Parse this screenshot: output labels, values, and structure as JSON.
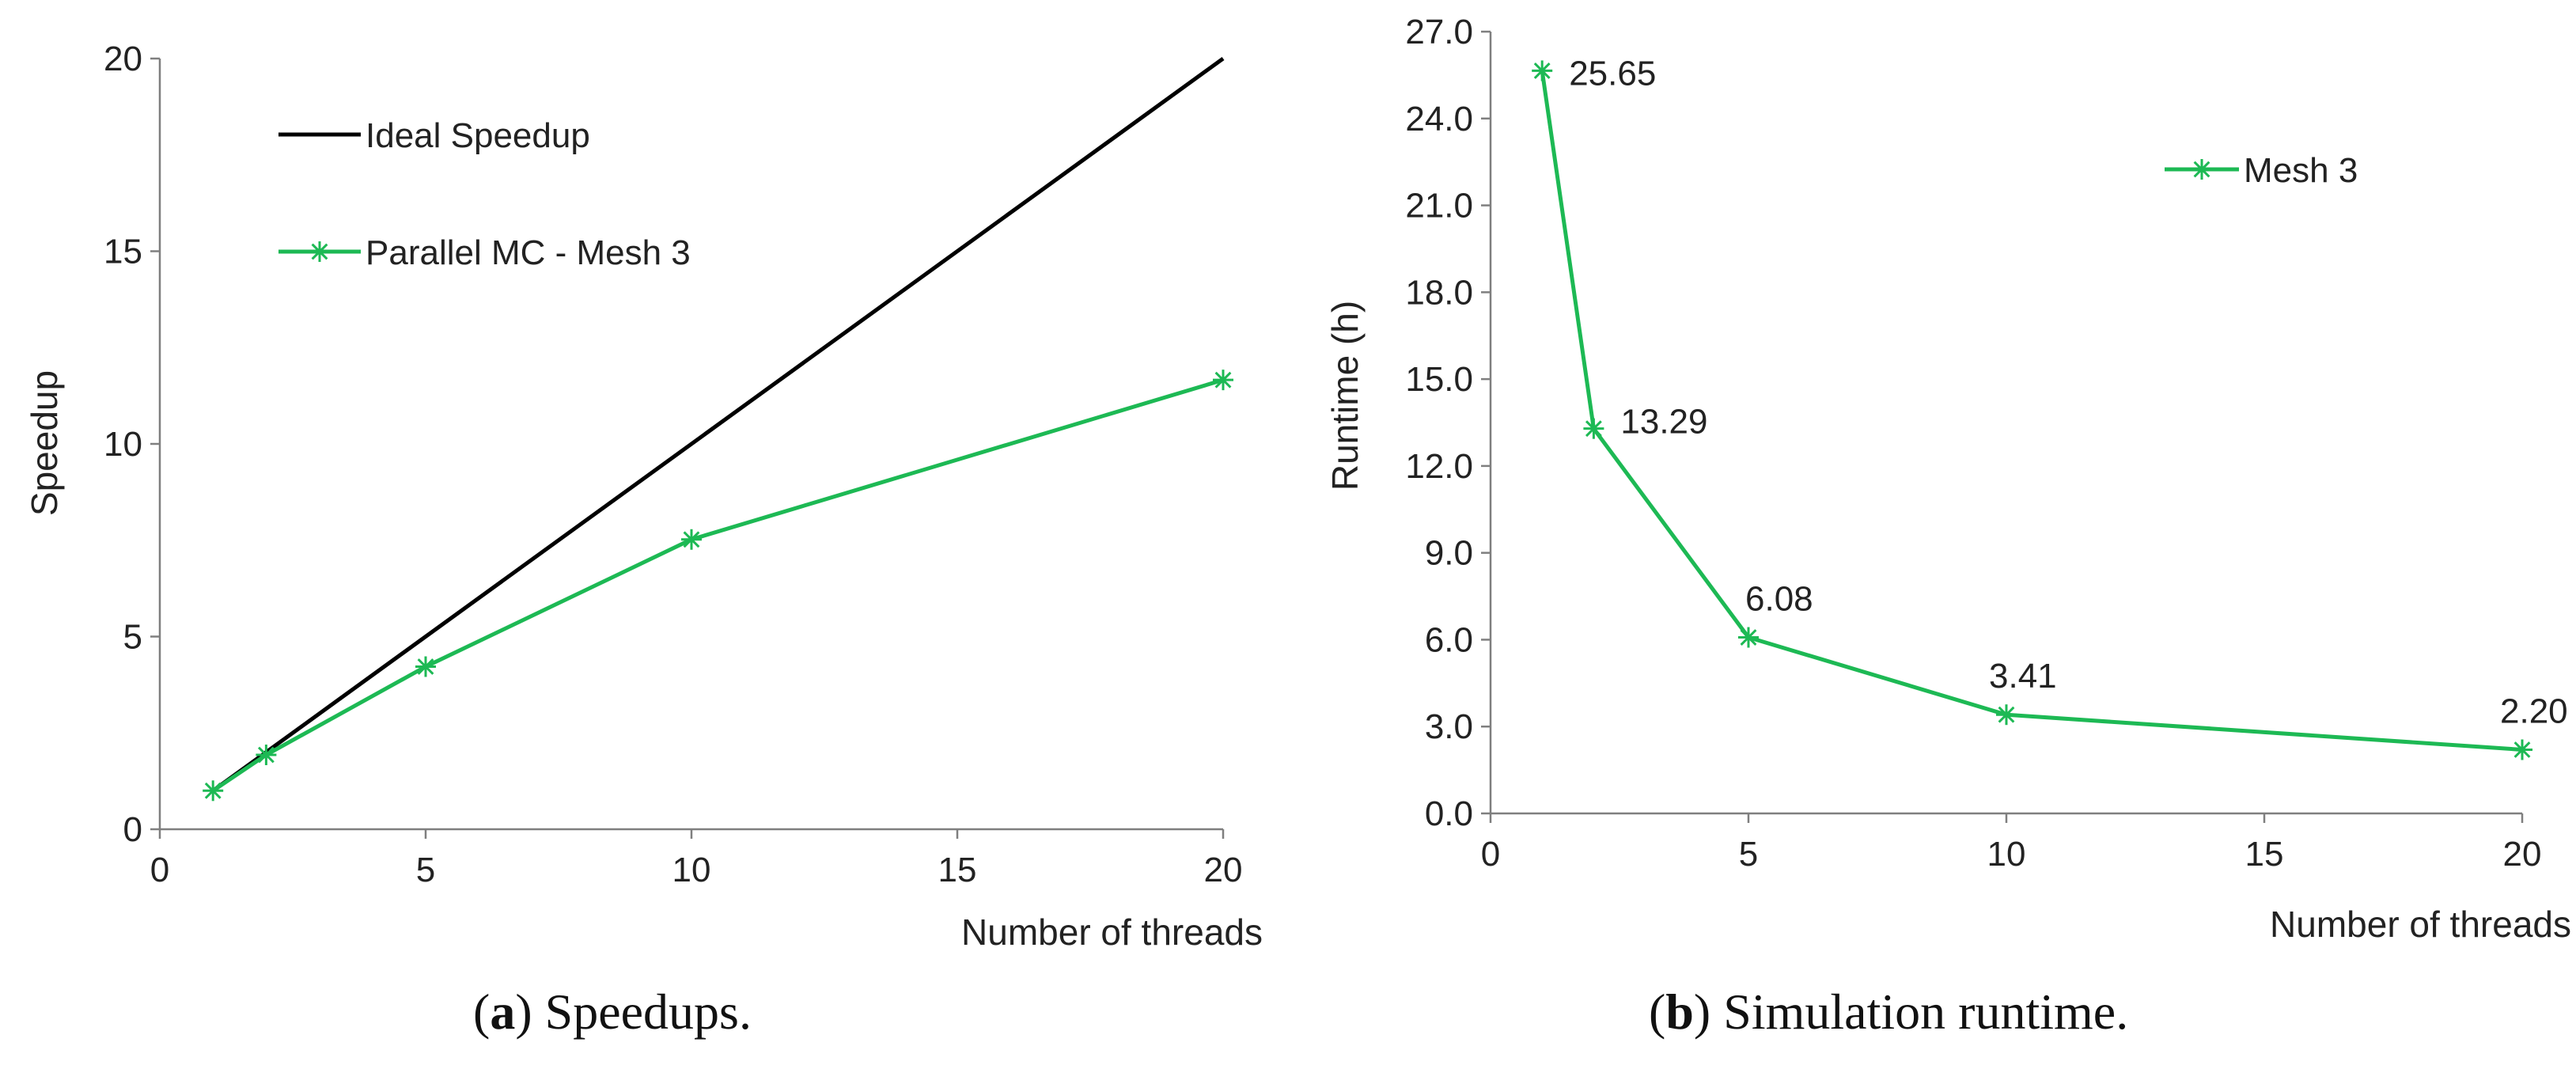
{
  "chart_data": [
    {
      "type": "line",
      "panel": "a",
      "caption_letter": "a",
      "caption_text": "Speedups.",
      "xlabel": "Number of threads",
      "ylabel": "Speedup",
      "xlim": [
        0,
        20
      ],
      "ylim": [
        0,
        20
      ],
      "xticks": [
        "0",
        "5",
        "10",
        "15",
        "20"
      ],
      "yticks": [
        "0",
        "5",
        "10",
        "15",
        "20"
      ],
      "series": [
        {
          "name": "Ideal Speedup",
          "color": "#000000",
          "marker": "none",
          "x": [
            1,
            20
          ],
          "y": [
            1,
            20
          ]
        },
        {
          "name": "Parallel MC - Mesh 3",
          "color": "#1db954",
          "marker": "asterisk",
          "x": [
            1,
            2,
            5,
            10,
            20
          ],
          "y": [
            1.0,
            1.93,
            4.22,
            7.52,
            11.66
          ]
        }
      ]
    },
    {
      "type": "line",
      "panel": "b",
      "caption_letter": "b",
      "caption_text": "Simulation runtime.",
      "xlabel": "Number of threads",
      "ylabel": "Runtime (h)",
      "xlim": [
        0,
        20
      ],
      "ylim": [
        0,
        27
      ],
      "xticks": [
        "0",
        "5",
        "10",
        "15",
        "20"
      ],
      "yticks": [
        "0.0",
        "3.0",
        "6.0",
        "9.0",
        "12.0",
        "15.0",
        "18.0",
        "21.0",
        "24.0",
        "27.0"
      ],
      "series": [
        {
          "name": "Mesh 3",
          "color": "#1db954",
          "marker": "asterisk",
          "x": [
            1,
            2,
            5,
            10,
            20
          ],
          "y": [
            25.65,
            13.29,
            6.08,
            3.41,
            2.2
          ],
          "labels": [
            "25.65",
            "13.29",
            "6.08",
            "3.41",
            "2.20"
          ]
        }
      ]
    }
  ]
}
